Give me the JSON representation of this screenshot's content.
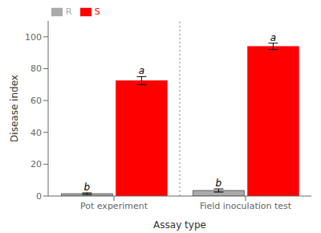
{
  "chart_data": {
    "type": "bar",
    "xlabel": "Assay type",
    "ylabel": "Disease  index",
    "categories": [
      "Pot experiment",
      "Field inoculation test"
    ],
    "series": [
      {
        "name": "R",
        "color": "#aaaaaa",
        "values": [
          1.5,
          3.5
        ],
        "errors": [
          0.5,
          1.0
        ],
        "annotations": [
          "b",
          "b"
        ]
      },
      {
        "name": "S",
        "color": "#ff0000",
        "values": [
          72.5,
          94.0
        ],
        "errors": [
          2.5,
          2.0
        ],
        "annotations": [
          "a",
          "a"
        ]
      }
    ],
    "ylim": [
      0,
      110
    ],
    "yticks": [
      0,
      20,
      40,
      60,
      80,
      100
    ],
    "legend": "upper left"
  }
}
